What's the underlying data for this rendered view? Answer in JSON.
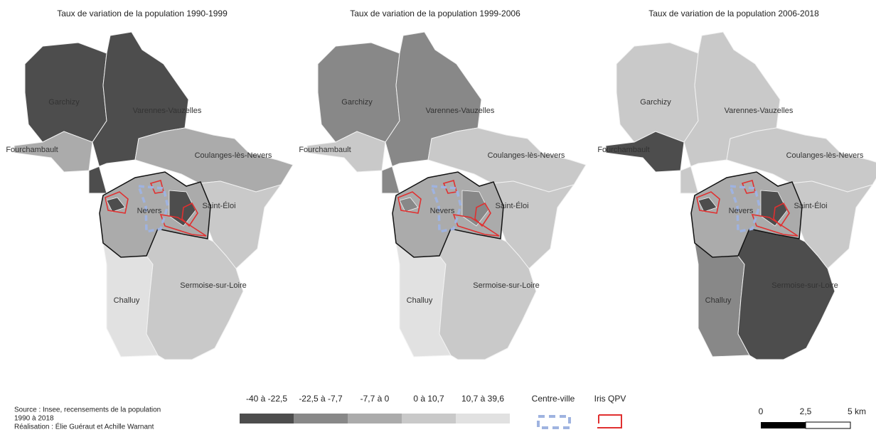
{
  "maps": [
    {
      "title": "Taux de variation de la population 1990-1999",
      "communes": [
        "Garchizy",
        "Varennes-Vauzelles",
        "Fourchambault",
        "Coulanges-lès-Nevers",
        "Saint-Éloi",
        "Nevers",
        "Challuy",
        "Sermoise-sur-Loire"
      ]
    },
    {
      "title": "Taux de variation de la population 1999-2006",
      "communes": [
        "Garchizy",
        "Varennes-Vauzelles",
        "Fourchambault",
        "Coulanges-lès-Nevers",
        "Saint-Éloi",
        "Nevers",
        "Challuy",
        "Sermoise-sur-Loire"
      ]
    },
    {
      "title": "Taux de variation de la population 2006-2018",
      "communes": [
        "Garchizy",
        "Varennes-Vauzelles",
        "Fourchambault",
        "Coulanges-lès-Nevers",
        "Saint-Éloi",
        "Nevers",
        "Challuy",
        "Sermoise-sur-Loire"
      ]
    }
  ],
  "legend": {
    "classes": [
      {
        "label": "-40 à -22,5",
        "color": "#4d4d4d"
      },
      {
        "label": "-22,5 à -7,7",
        "color": "#888888"
      },
      {
        "label": "-7,7 à 0",
        "color": "#ababab"
      },
      {
        "label": "0 à 10,7",
        "color": "#c9c9c9"
      },
      {
        "label": "10,7 à 39,6",
        "color": "#e1e1e1"
      }
    ],
    "centre_ville": "Centre-ville",
    "iris_qpv": "Iris QPV"
  },
  "source": [
    "Source : Insee, recensements de la population",
    "1990 à 2018",
    "Réalisation : Élie Guéraut et Achille Warnant"
  ],
  "scale": [
    "0",
    "2,5",
    "5 km"
  ]
}
